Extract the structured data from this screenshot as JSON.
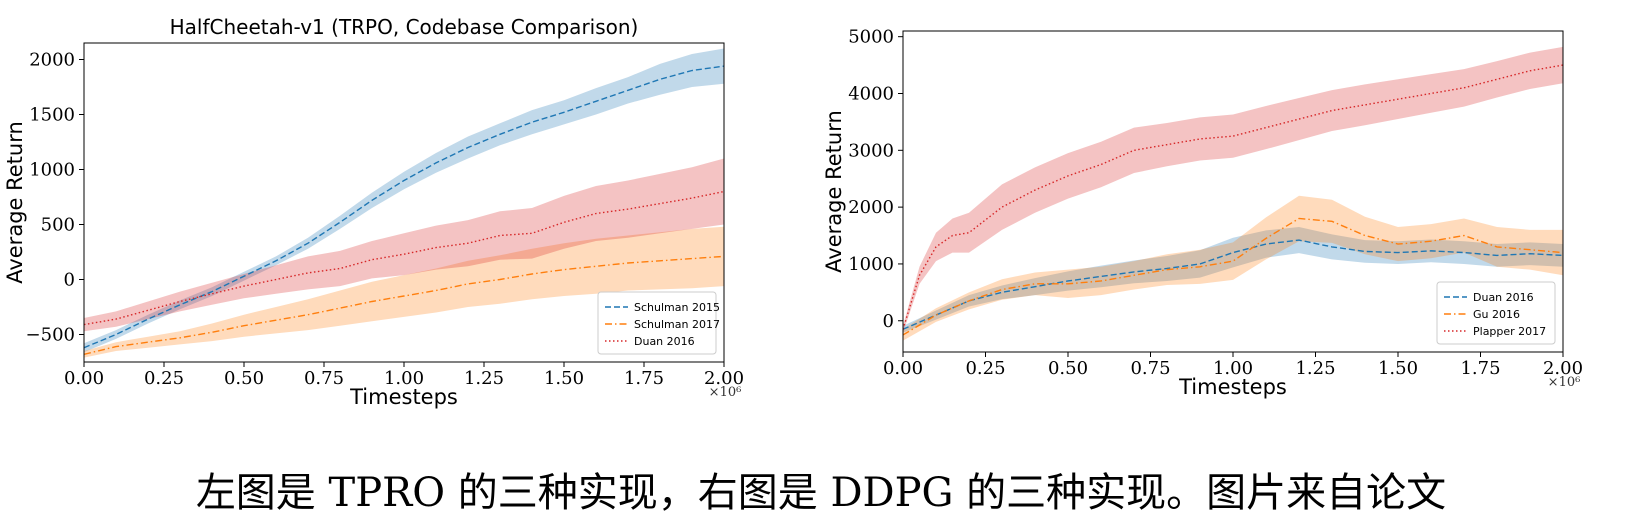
{
  "caption": "左图是 TPRO 的三种实现，右图是 DDPG 的三种实现。图片来自论文",
  "chart_data": [
    {
      "type": "line",
      "title": "HalfCheetah-v1 (TRPO, Codebase Comparison)",
      "xlabel": "Timesteps",
      "ylabel": "Average Return",
      "x_scale_label": "×10⁶",
      "xlim": [
        0,
        2.0
      ],
      "ylim": [
        -750,
        2150
      ],
      "xticks": [
        0.0,
        0.25,
        0.5,
        0.75,
        1.0,
        1.25,
        1.5,
        1.75,
        2.0
      ],
      "xtick_labels": [
        "0.00",
        "0.25",
        "0.50",
        "0.75",
        "1.00",
        "1.25",
        "1.50",
        "1.75",
        "2.00"
      ],
      "yticks": [
        -500,
        0,
        500,
        1000,
        1500,
        2000
      ],
      "ytick_labels": [
        "−500",
        "0",
        "500",
        "1000",
        "1500",
        "2000"
      ],
      "grid": false,
      "legend_position": "bottom-right",
      "series": [
        {
          "name": "Schulman 2015",
          "color": "#1f77b4",
          "dash": "dashed",
          "x": [
            0.0,
            0.1,
            0.2,
            0.3,
            0.4,
            0.5,
            0.6,
            0.7,
            0.8,
            0.9,
            1.0,
            1.1,
            1.2,
            1.3,
            1.4,
            1.5,
            1.6,
            1.7,
            1.8,
            1.9,
            2.0
          ],
          "y": [
            -620,
            -500,
            -360,
            -230,
            -110,
            30,
            170,
            330,
            520,
            720,
            900,
            1060,
            1200,
            1320,
            1430,
            1520,
            1620,
            1720,
            1820,
            1900,
            1940
          ],
          "band": [
            40,
            40,
            40,
            40,
            40,
            40,
            40,
            50,
            60,
            70,
            80,
            90,
            100,
            100,
            110,
            110,
            120,
            120,
            140,
            150,
            160
          ]
        },
        {
          "name": "Schulman 2017",
          "color": "#ff7f0e",
          "dash": "dashdot",
          "x": [
            0.0,
            0.1,
            0.2,
            0.3,
            0.4,
            0.5,
            0.6,
            0.7,
            0.8,
            0.9,
            1.0,
            1.1,
            1.2,
            1.3,
            1.4,
            1.5,
            1.6,
            1.7,
            1.8,
            1.9,
            2.0
          ],
          "y": [
            -680,
            -610,
            -570,
            -530,
            -480,
            -420,
            -370,
            -320,
            -260,
            -200,
            -150,
            -100,
            -40,
            0,
            50,
            90,
            120,
            150,
            170,
            190,
            210
          ],
          "band": [
            30,
            40,
            50,
            60,
            80,
            100,
            120,
            140,
            160,
            180,
            190,
            200,
            210,
            220,
            230,
            240,
            250,
            250,
            260,
            270,
            270
          ]
        },
        {
          "name": "Duan 2016",
          "color": "#d62728",
          "dash": "dotted",
          "x": [
            0.0,
            0.1,
            0.2,
            0.3,
            0.4,
            0.5,
            0.6,
            0.7,
            0.8,
            0.9,
            1.0,
            1.1,
            1.2,
            1.3,
            1.4,
            1.5,
            1.6,
            1.7,
            1.8,
            1.9,
            2.0
          ],
          "y": [
            -410,
            -360,
            -280,
            -200,
            -130,
            -60,
            0,
            60,
            100,
            180,
            230,
            290,
            330,
            400,
            420,
            520,
            600,
            640,
            690,
            740,
            800
          ],
          "band": [
            60,
            70,
            80,
            90,
            100,
            110,
            130,
            150,
            160,
            170,
            190,
            200,
            210,
            220,
            230,
            240,
            250,
            260,
            270,
            280,
            300
          ]
        }
      ]
    },
    {
      "type": "line",
      "title": "",
      "xlabel": "Timesteps",
      "ylabel": "Average Return",
      "x_scale_label": "×10⁶",
      "xlim": [
        0,
        2.0
      ],
      "ylim": [
        -550,
        5100
      ],
      "xticks": [
        0.0,
        0.25,
        0.5,
        0.75,
        1.0,
        1.25,
        1.5,
        1.75,
        2.0
      ],
      "xtick_labels": [
        "0.00",
        "0.25",
        "0.50",
        "0.75",
        "1.00",
        "1.25",
        "1.50",
        "1.75",
        "2.00"
      ],
      "yticks": [
        0,
        1000,
        2000,
        3000,
        4000,
        5000
      ],
      "ytick_labels": [
        "0",
        "1000",
        "2000",
        "3000",
        "4000",
        "5000"
      ],
      "grid": false,
      "legend_position": "bottom-right",
      "series": [
        {
          "name": "Duan 2016",
          "color": "#1f77b4",
          "dash": "dashed",
          "x": [
            0.0,
            0.1,
            0.2,
            0.3,
            0.4,
            0.5,
            0.6,
            0.7,
            0.8,
            0.9,
            1.0,
            1.1,
            1.2,
            1.3,
            1.4,
            1.5,
            1.6,
            1.7,
            1.8,
            1.9,
            2.0
          ],
          "y": [
            -150,
            100,
            350,
            500,
            600,
            700,
            780,
            860,
            920,
            1000,
            1200,
            1350,
            1420,
            1300,
            1220,
            1200,
            1230,
            1200,
            1150,
            1180,
            1150
          ],
          "band": [
            60,
            80,
            100,
            120,
            150,
            170,
            190,
            200,
            220,
            240,
            260,
            240,
            230,
            220,
            200,
            200,
            200,
            200,
            200,
            200,
            200
          ]
        },
        {
          "name": "Gu 2016",
          "color": "#ff7f0e",
          "dash": "dashdot",
          "x": [
            0.0,
            0.1,
            0.2,
            0.3,
            0.4,
            0.5,
            0.6,
            0.7,
            0.8,
            0.9,
            1.0,
            1.1,
            1.2,
            1.3,
            1.4,
            1.5,
            1.6,
            1.7,
            1.8,
            1.9,
            2.0
          ],
          "y": [
            -250,
            100,
            350,
            550,
            650,
            650,
            700,
            800,
            900,
            950,
            1050,
            1450,
            1800,
            1750,
            1500,
            1350,
            1400,
            1500,
            1300,
            1250,
            1200
          ],
          "band": [
            100,
            120,
            150,
            180,
            200,
            250,
            250,
            250,
            270,
            300,
            330,
            370,
            400,
            380,
            330,
            300,
            300,
            300,
            350,
            350,
            400
          ]
        },
        {
          "name": "Plapper 2017",
          "color": "#d62728",
          "dash": "dotted",
          "x": [
            0.0,
            0.05,
            0.1,
            0.15,
            0.2,
            0.3,
            0.4,
            0.5,
            0.6,
            0.7,
            0.8,
            0.9,
            1.0,
            1.1,
            1.2,
            1.3,
            1.4,
            1.5,
            1.6,
            1.7,
            1.8,
            1.9,
            2.0
          ],
          "y": [
            -150,
            800,
            1300,
            1500,
            1550,
            2000,
            2300,
            2550,
            2750,
            3000,
            3100,
            3200,
            3250,
            3400,
            3550,
            3700,
            3800,
            3900,
            4000,
            4100,
            4250,
            4400,
            4500
          ],
          "band": [
            60,
            150,
            250,
            300,
            350,
            400,
            400,
            400,
            400,
            400,
            380,
            380,
            380,
            380,
            370,
            360,
            360,
            350,
            340,
            330,
            320,
            320,
            320
          ]
        }
      ]
    }
  ]
}
